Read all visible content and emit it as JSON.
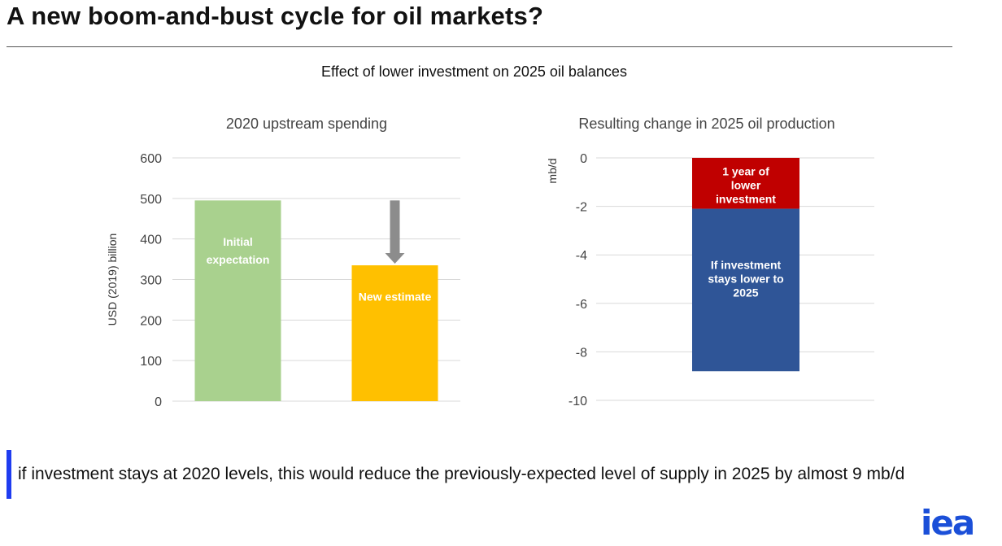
{
  "slide": {
    "title": "A new boom-and-bust cycle for oil markets?",
    "figure_title": "Effect of lower investment on 2025 oil balances",
    "note": "if investment stays at 2020 levels, this would reduce the previously-expected level of supply in 2025 by almost 9 mb/d",
    "logo": "iea",
    "note_bar_color": "#1f3cf0",
    "logo_color": "#1b4fd8"
  },
  "chart_data": [
    {
      "type": "bar",
      "title": "2020 upstream spending",
      "ylabel": "USD (2019) billion",
      "xlabel": "",
      "ylim": [
        0,
        600
      ],
      "yticks": [
        0,
        100,
        200,
        300,
        400,
        500,
        600
      ],
      "grid": true,
      "categories": [
        "Initial expectation",
        "New estimate"
      ],
      "values": [
        495,
        335
      ],
      "colors": [
        "#a9d18e",
        "#ffc000"
      ],
      "bar_labels": [
        "Initial\nexpectation",
        "New estimate"
      ],
      "annotation": "down-arrow",
      "annotation_color": "#8c8c8c"
    },
    {
      "type": "bar",
      "stacked": true,
      "title": "Resulting change in 2025 oil production",
      "ylabel": "mb/d",
      "xlabel": "",
      "ylim": [
        -10,
        0
      ],
      "yticks": [
        0,
        -2,
        -4,
        -6,
        -8,
        -10
      ],
      "grid": true,
      "series": [
        {
          "label": "1 year of\nlower\ninvestment",
          "value": -2.1,
          "color": "#c00000"
        },
        {
          "label": "If investment\nstays lower to\n2025",
          "value": -6.7,
          "color": "#2f5597"
        }
      ]
    }
  ]
}
